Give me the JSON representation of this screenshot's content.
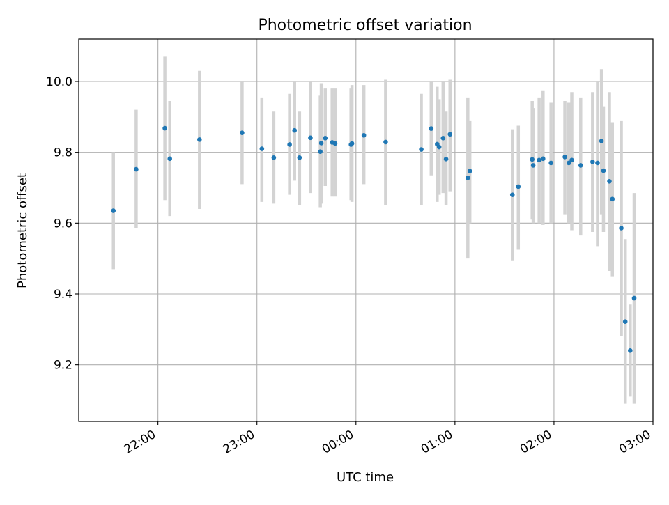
{
  "chart_data": {
    "type": "scatter",
    "title": "Photometric offset variation",
    "xlabel": "UTC time",
    "ylabel": "Photometric offset",
    "x_unit": "hours since 00:00 UTC",
    "xlim": [
      -2.8,
      3.0
    ],
    "ylim": [
      9.04,
      10.12
    ],
    "xticks": [
      {
        "value": -2,
        "label": "22:00"
      },
      {
        "value": -1,
        "label": "23:00"
      },
      {
        "value": 0,
        "label": "00:00"
      },
      {
        "value": 1,
        "label": "01:00"
      },
      {
        "value": 2,
        "label": "02:00"
      },
      {
        "value": 3,
        "label": "03:00"
      }
    ],
    "yticks": [
      {
        "value": 9.2,
        "label": "9.2"
      },
      {
        "value": 9.4,
        "label": "9.4"
      },
      {
        "value": 9.6,
        "label": "9.6"
      },
      {
        "value": 9.8,
        "label": "9.8"
      },
      {
        "value": 10.0,
        "label": "10.0"
      }
    ],
    "grid": true,
    "point_color": "#1f77b4",
    "errorbar_color": "#d3d3d3",
    "points": [
      {
        "x": -2.45,
        "y": 9.635,
        "lo": 9.47,
        "hi": 9.8
      },
      {
        "x": -2.22,
        "y": 9.752,
        "lo": 9.585,
        "hi": 9.92
      },
      {
        "x": -1.93,
        "y": 9.868,
        "lo": 9.665,
        "hi": 10.07
      },
      {
        "x": -1.88,
        "y": 9.782,
        "lo": 9.62,
        "hi": 9.945
      },
      {
        "x": -1.58,
        "y": 9.836,
        "lo": 9.64,
        "hi": 10.03
      },
      {
        "x": -1.15,
        "y": 9.855,
        "lo": 9.71,
        "hi": 10.0
      },
      {
        "x": -0.95,
        "y": 9.81,
        "lo": 9.66,
        "hi": 9.955
      },
      {
        "x": -0.83,
        "y": 9.785,
        "lo": 9.655,
        "hi": 9.915
      },
      {
        "x": -0.67,
        "y": 9.822,
        "lo": 9.68,
        "hi": 9.965
      },
      {
        "x": -0.62,
        "y": 9.862,
        "lo": 9.72,
        "hi": 10.0
      },
      {
        "x": -0.57,
        "y": 9.785,
        "lo": 9.65,
        "hi": 9.915
      },
      {
        "x": -0.46,
        "y": 9.841,
        "lo": 9.685,
        "hi": 10.0
      },
      {
        "x": -0.36,
        "y": 9.802,
        "lo": 9.645,
        "hi": 9.96
      },
      {
        "x": -0.35,
        "y": 9.826,
        "lo": 9.655,
        "hi": 9.995
      },
      {
        "x": -0.31,
        "y": 9.84,
        "lo": 9.705,
        "hi": 9.98
      },
      {
        "x": -0.24,
        "y": 9.828,
        "lo": 9.675,
        "hi": 9.98
      },
      {
        "x": -0.21,
        "y": 9.825,
        "lo": 9.675,
        "hi": 9.98
      },
      {
        "x": -0.05,
        "y": 9.822,
        "lo": 9.665,
        "hi": 9.98
      },
      {
        "x": -0.04,
        "y": 9.825,
        "lo": 9.66,
        "hi": 9.99
      },
      {
        "x": 0.08,
        "y": 9.848,
        "lo": 9.71,
        "hi": 9.99
      },
      {
        "x": 0.3,
        "y": 9.829,
        "lo": 9.65,
        "hi": 10.005
      },
      {
        "x": 0.66,
        "y": 9.808,
        "lo": 9.65,
        "hi": 9.965
      },
      {
        "x": 0.76,
        "y": 9.867,
        "lo": 9.735,
        "hi": 10.0
      },
      {
        "x": 0.82,
        "y": 9.823,
        "lo": 9.66,
        "hi": 9.985
      },
      {
        "x": 0.84,
        "y": 9.815,
        "lo": 9.68,
        "hi": 9.95
      },
      {
        "x": 0.88,
        "y": 9.84,
        "lo": 9.685,
        "hi": 10.0
      },
      {
        "x": 0.91,
        "y": 9.781,
        "lo": 9.65,
        "hi": 9.915
      },
      {
        "x": 0.95,
        "y": 9.851,
        "lo": 9.69,
        "hi": 10.005
      },
      {
        "x": 1.13,
        "y": 9.728,
        "lo": 9.5,
        "hi": 9.955
      },
      {
        "x": 1.15,
        "y": 9.747,
        "lo": 9.6,
        "hi": 9.89
      },
      {
        "x": 1.58,
        "y": 9.68,
        "lo": 9.495,
        "hi": 9.865
      },
      {
        "x": 1.64,
        "y": 9.703,
        "lo": 9.525,
        "hi": 9.875
      },
      {
        "x": 1.78,
        "y": 9.78,
        "lo": 9.61,
        "hi": 9.945
      },
      {
        "x": 1.79,
        "y": 9.763,
        "lo": 9.6,
        "hi": 9.925
      },
      {
        "x": 1.85,
        "y": 9.778,
        "lo": 9.6,
        "hi": 9.955
      },
      {
        "x": 1.89,
        "y": 9.782,
        "lo": 9.595,
        "hi": 9.975
      },
      {
        "x": 1.97,
        "y": 9.77,
        "lo": 9.6,
        "hi": 9.94
      },
      {
        "x": 2.11,
        "y": 9.787,
        "lo": 9.625,
        "hi": 9.945
      },
      {
        "x": 2.15,
        "y": 9.77,
        "lo": 9.6,
        "hi": 9.94
      },
      {
        "x": 2.18,
        "y": 9.778,
        "lo": 9.58,
        "hi": 9.97
      },
      {
        "x": 2.27,
        "y": 9.763,
        "lo": 9.565,
        "hi": 9.955
      },
      {
        "x": 2.39,
        "y": 9.773,
        "lo": 9.575,
        "hi": 9.97
      },
      {
        "x": 2.44,
        "y": 9.77,
        "lo": 9.535,
        "hi": 10.0
      },
      {
        "x": 2.48,
        "y": 9.832,
        "lo": 9.625,
        "hi": 10.035
      },
      {
        "x": 2.5,
        "y": 9.748,
        "lo": 9.575,
        "hi": 9.93
      },
      {
        "x": 2.56,
        "y": 9.718,
        "lo": 9.465,
        "hi": 9.97
      },
      {
        "x": 2.59,
        "y": 9.668,
        "lo": 9.45,
        "hi": 9.885
      },
      {
        "x": 2.68,
        "y": 9.586,
        "lo": 9.28,
        "hi": 9.89
      },
      {
        "x": 2.72,
        "y": 9.322,
        "lo": 9.09,
        "hi": 9.555
      },
      {
        "x": 2.77,
        "y": 9.24,
        "lo": 9.11,
        "hi": 9.37
      },
      {
        "x": 2.81,
        "y": 9.388,
        "lo": 9.09,
        "hi": 9.685
      }
    ]
  }
}
